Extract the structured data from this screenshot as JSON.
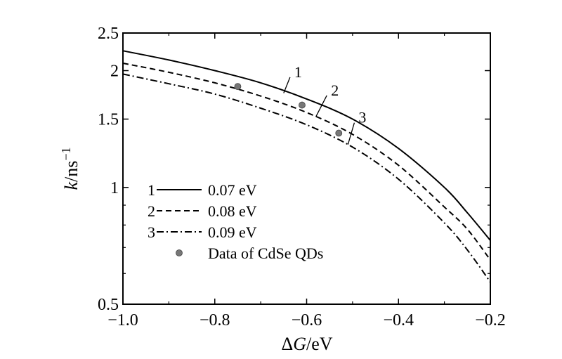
{
  "chart_data": {
    "type": "line",
    "xlabel": {
      "prefix": "Δ",
      "var": "G",
      "suffix": "/eV"
    },
    "ylabel": {
      "var": "k",
      "suffix": "/ns",
      "sup": "−1"
    },
    "xlim": [
      -1.0,
      -0.2
    ],
    "ylim": [
      0.5,
      2.5
    ],
    "yscale": "log",
    "grid": false,
    "legend_position": "lower-left",
    "x_ticks": [
      {
        "value": -1.0,
        "label": "−1.0"
      },
      {
        "value": -0.8,
        "label": "−0.8"
      },
      {
        "value": -0.6,
        "label": "−0.6"
      },
      {
        "value": -0.4,
        "label": "−0.4"
      },
      {
        "value": -0.2,
        "label": "−0.2"
      }
    ],
    "y_ticks": [
      {
        "value": 2.5,
        "label": "2.5"
      },
      {
        "value": 2.0,
        "label": "2"
      },
      {
        "value": 1.5,
        "label": "1.5"
      },
      {
        "value": 1.0,
        "label": "1"
      },
      {
        "value": 0.5,
        "label": "0.5"
      }
    ],
    "x": [
      -1.0,
      -0.9,
      -0.8,
      -0.7,
      -0.6,
      -0.5,
      -0.4,
      -0.3,
      -0.25,
      -0.2
    ],
    "series": [
      {
        "id": "1",
        "name": "0.07 eV",
        "dash": "solid",
        "values": [
          2.25,
          2.13,
          2.0,
          1.86,
          1.69,
          1.5,
          1.26,
          1.0,
          0.86,
          0.73
        ]
      },
      {
        "id": "2",
        "name": "0.08 eV",
        "dash": "dashed",
        "values": [
          2.09,
          1.98,
          1.86,
          1.72,
          1.56,
          1.37,
          1.14,
          0.89,
          0.78,
          0.65
        ]
      },
      {
        "id": "3",
        "name": "0.09 eV",
        "dash": "dashdot",
        "values": [
          1.96,
          1.85,
          1.74,
          1.6,
          1.45,
          1.27,
          1.05,
          0.81,
          0.69,
          0.57
        ]
      }
    ],
    "scatter": {
      "name": "Data of CdSe QDs",
      "points": [
        {
          "x": -0.75,
          "y": 1.82
        },
        {
          "x": -0.61,
          "y": 1.63
        },
        {
          "x": -0.53,
          "y": 1.38
        }
      ]
    },
    "curve_labels": [
      {
        "text": "1",
        "x": -0.63,
        "y": 1.94,
        "anchor_x": -0.65,
        "anchor_y": 1.75
      },
      {
        "text": "2",
        "x": -0.55,
        "y": 1.74,
        "anchor_x": -0.58,
        "anchor_y": 1.52
      },
      {
        "text": "3",
        "x": -0.49,
        "y": 1.48,
        "anchor_x": -0.51,
        "anchor_y": 1.29
      }
    ],
    "legend": [
      {
        "num": "1",
        "label": "0.07 eV",
        "dash": "solid"
      },
      {
        "num": "2",
        "label": "0.08 eV",
        "dash": "dashed"
      },
      {
        "num": "3",
        "label": "0.09 eV",
        "dash": "dashdot"
      },
      {
        "num": "",
        "label": "Data of CdSe QDs",
        "marker": "dot"
      }
    ],
    "colors": {
      "line": "#000000",
      "dot": "#777777"
    }
  }
}
